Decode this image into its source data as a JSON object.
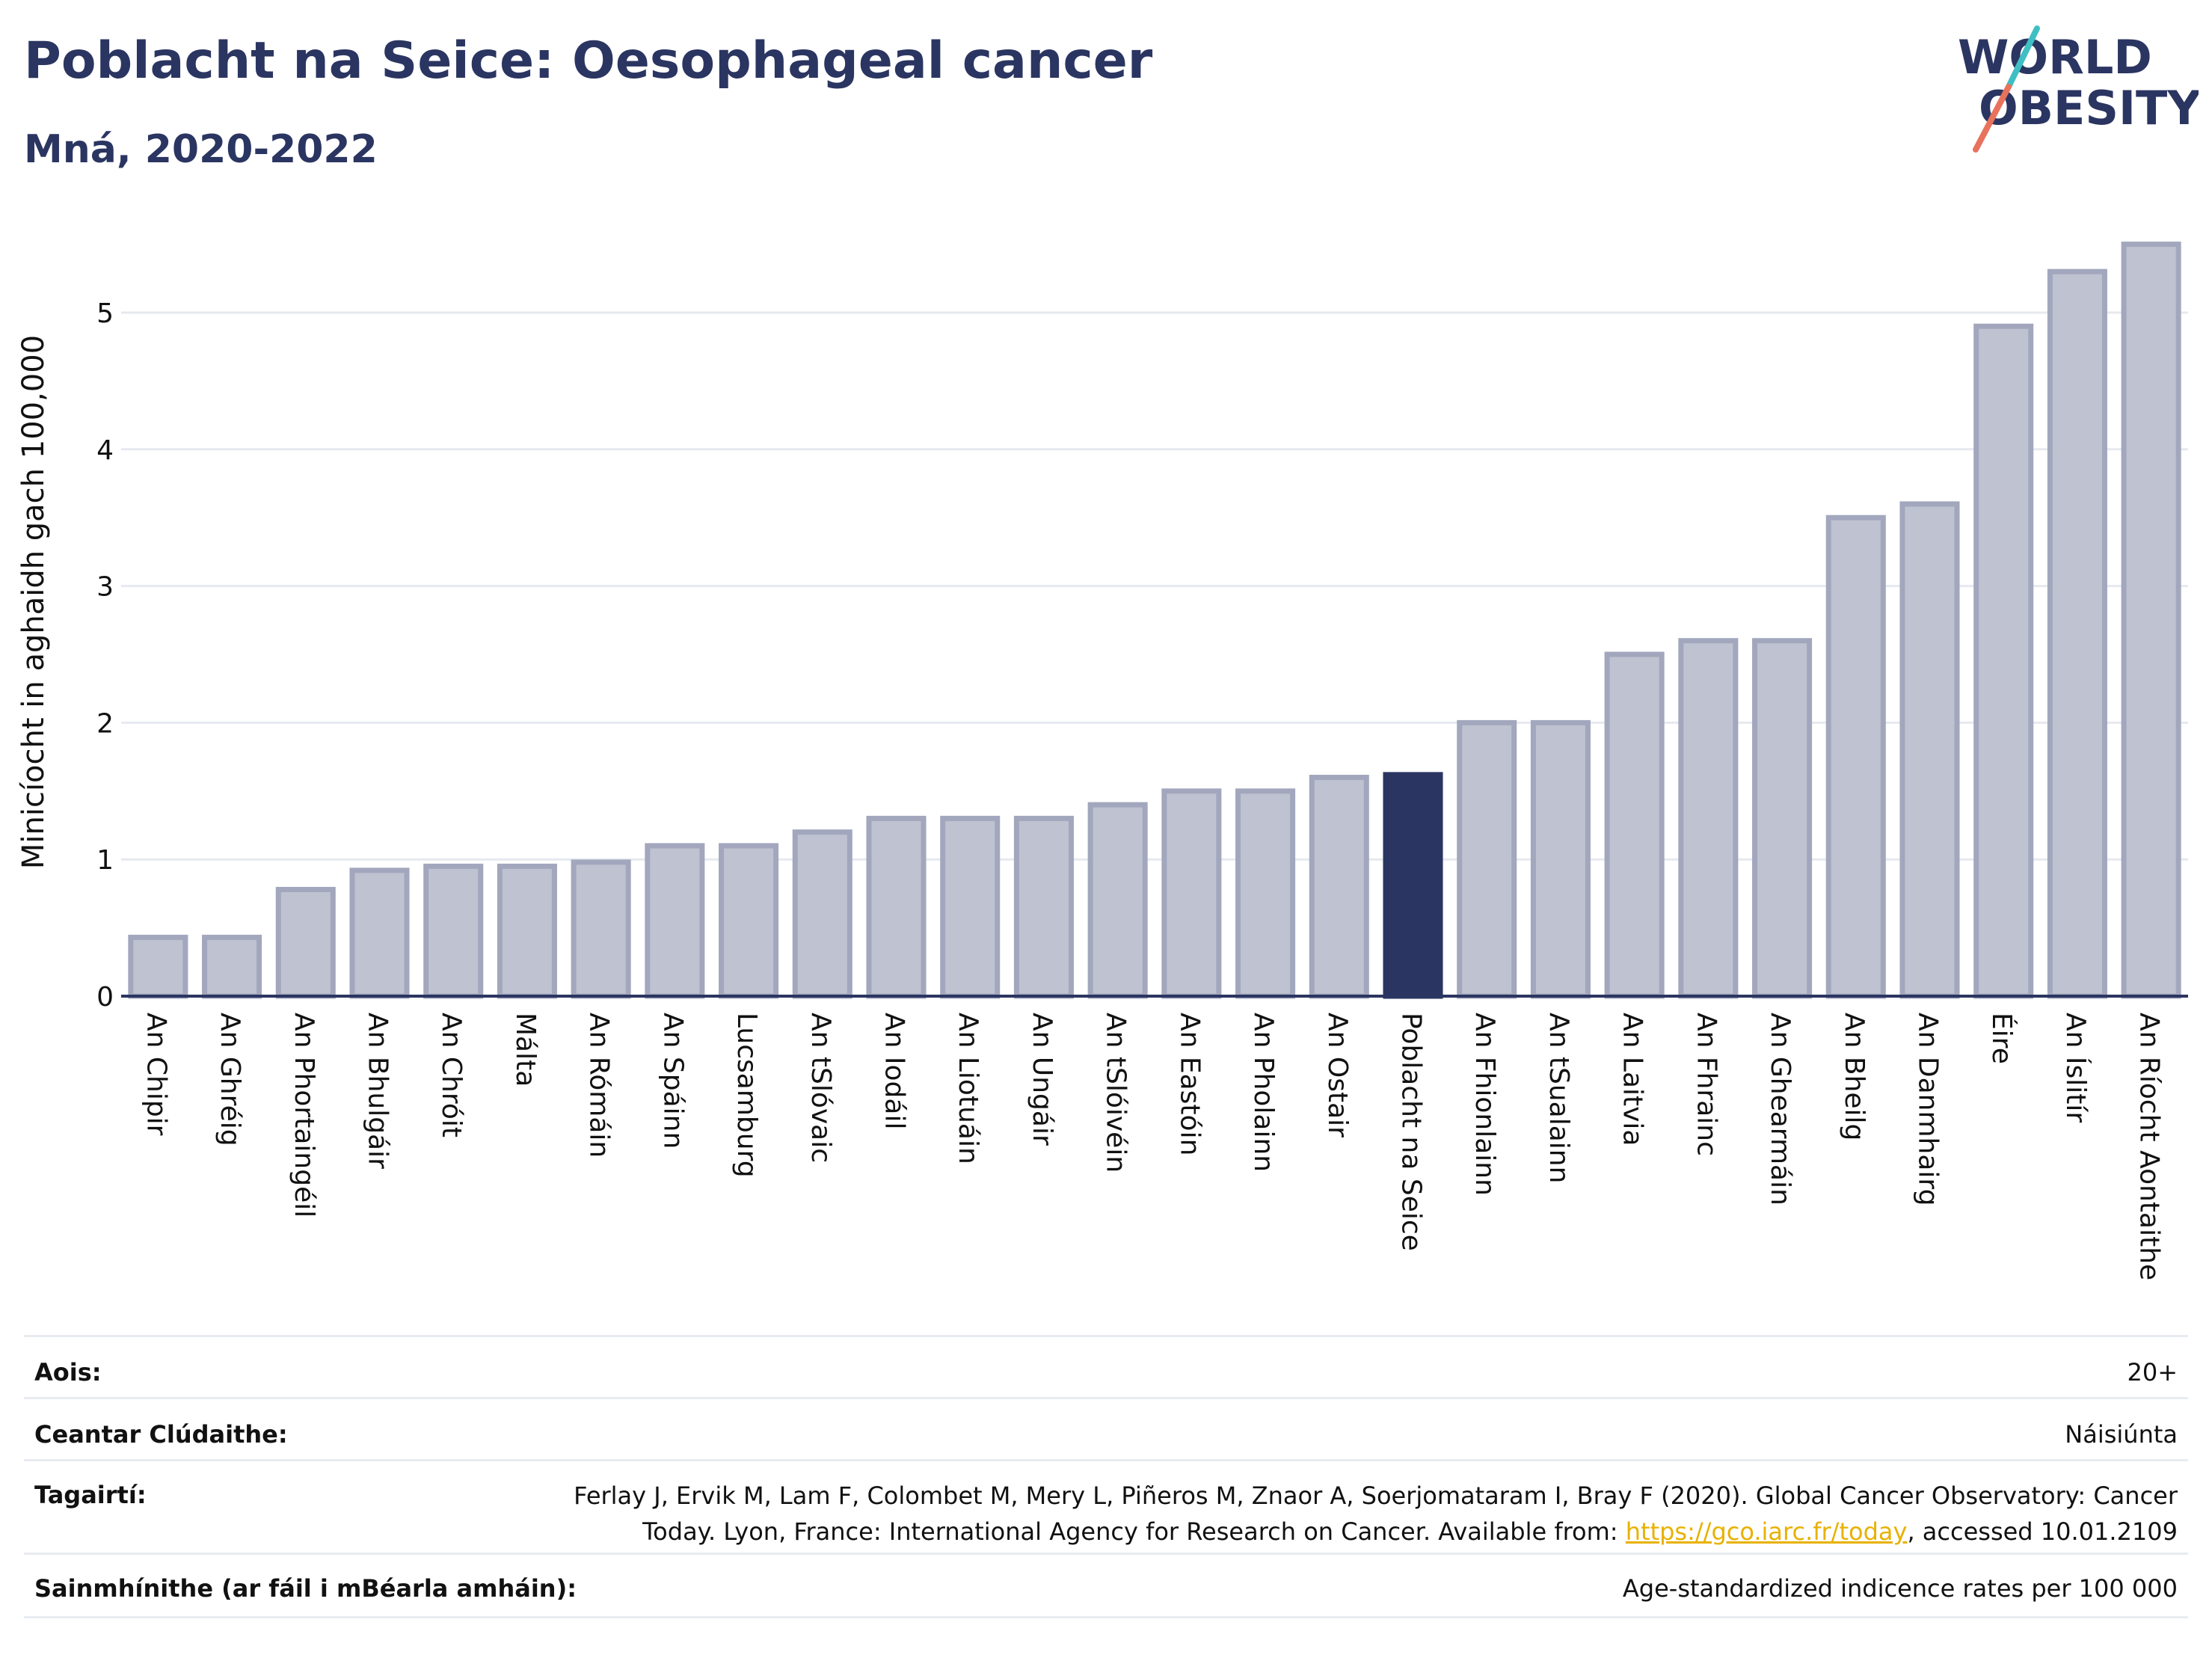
{
  "header": {
    "title": "Poblacht na Seice: Oesophageal cancer",
    "subtitle": "Mná, 2020-2022"
  },
  "logo": {
    "line1": "WORLD",
    "line2": "OBESITY"
  },
  "colors": {
    "bar": "#bfc2d0",
    "bar_stroke": "#a2a7bd",
    "highlight": "#2b3561",
    "grid": "#e6e9ef",
    "axis": "#2b3561"
  },
  "chart_data": {
    "type": "bar",
    "ylabel": "Minicíocht in aghaidh gach 100,000",
    "ylim": [
      0,
      5.6
    ],
    "yticks": [
      0,
      1,
      2,
      3,
      4,
      5
    ],
    "grid": true,
    "highlight": "Poblacht na Seice",
    "categories": [
      "An Chipir",
      "An Ghréig",
      "An Phortaingéil",
      "An Bhulgáir",
      "An Chróit",
      "Málta",
      "An Rómáin",
      "An Spáinn",
      "Lucsamburg",
      "An tSlóvaic",
      "An Iodáil",
      "An Liotuáin",
      "An Ungáir",
      "An tSlóivéin",
      "An Eastóin",
      "An Pholainn",
      "An Ostair",
      "Poblacht na Seice",
      "An Fhionlainn",
      "An tSualainn",
      "An Laitvia",
      "An Fhrainc",
      "An Ghearmáin",
      "An Bheilg",
      "An Danmhairg",
      "Éire",
      "An Íslitír",
      "An Ríocht Aontaithe"
    ],
    "values": [
      0.43,
      0.43,
      0.78,
      0.92,
      0.95,
      0.95,
      0.98,
      1.1,
      1.1,
      1.2,
      1.3,
      1.3,
      1.3,
      1.4,
      1.5,
      1.5,
      1.6,
      1.62,
      2.0,
      2.0,
      2.5,
      2.6,
      2.6,
      3.5,
      3.6,
      4.9,
      5.3,
      5.5
    ]
  },
  "footer": {
    "age_label": "Aois:",
    "age_value": "20+",
    "coverage_label": "Ceantar Clúdaithe:",
    "coverage_value": "Náisiúnta",
    "refs_label": "Tagairtí:",
    "refs_text": "Ferlay J, Ervik M, Lam F, Colombet M, Mery L, Piñeros M, Znaor A, Soerjomataram I, Bray F (2020). Global Cancer Observatory: Cancer Today. Lyon, France: International Agency for Research on Cancer. Available from: ",
    "refs_link": "https://gco.iarc.fr/today",
    "refs_tail": ", accessed 10.01.2109",
    "def_label": "Sainmhínithe (ar fáil i mBéarla amháin):",
    "def_value": "Age-standardized indicence rates per 100 000"
  }
}
